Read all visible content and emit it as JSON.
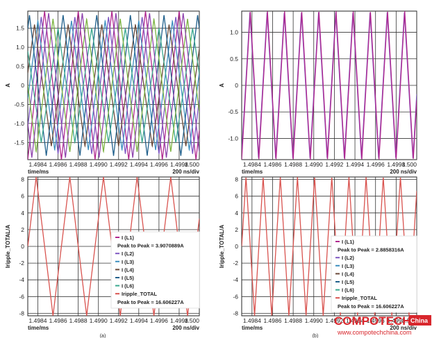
{
  "chart_data": [
    {
      "id": "a-top",
      "type": "line",
      "xlabel": "time/ms",
      "ylabel": "A",
      "scale_label": "200 ns/div",
      "xlim": [
        1.4983,
        1.5
      ],
      "ylim": [
        -1.95,
        1.95
      ],
      "x_ticks": [
        1.4984,
        1.4986,
        1.4988,
        1.499,
        1.4992,
        1.4994,
        1.4996,
        1.4998,
        1.5
      ],
      "x_tick_labels": [
        "1.4984",
        "1.4986",
        "1.4988",
        "1.4990",
        "1.4992",
        "1.4994",
        "1.4996",
        "1.4998",
        "1.500"
      ],
      "y_ticks": [
        -1.5,
        -1.0,
        -0.5,
        0,
        0.5,
        1.0,
        1.5
      ],
      "y_tick_labels": [
        "-1.5",
        "-1.0",
        "-0.5",
        "0",
        "0.5",
        "1.0",
        "1.5"
      ],
      "grid": true,
      "waveform": {
        "shape": "triangle",
        "period_ms": 0.00033333,
        "peak_to_peak": 3.9070889
      },
      "series": [
        {
          "color": "#b0278f",
          "amplitude": 1.95,
          "phase": 0.0
        },
        {
          "color": "#7e57c2",
          "amplitude": 1.8,
          "phase": 0.1
        },
        {
          "color": "#3d8fbf",
          "amplitude": 1.7,
          "phase": 0.2
        },
        {
          "color": "#6b4a3a",
          "amplitude": 1.6,
          "phase": 0.3
        },
        {
          "color": "#1f5f8b",
          "amplitude": 1.85,
          "phase": 0.45
        },
        {
          "color": "#3aa88f",
          "amplitude": 1.5,
          "phase": 0.6
        },
        {
          "color": "#7cb342",
          "amplitude": 1.75,
          "phase": 0.75
        },
        {
          "color": "#8e44ad",
          "amplitude": 1.9,
          "phase": 0.88
        }
      ]
    },
    {
      "id": "b-top",
      "type": "line",
      "xlabel": "time/ms",
      "ylabel": "A",
      "scale_label": "200 ns/div",
      "xlim": [
        1.4983,
        1.5
      ],
      "ylim": [
        -1.4,
        1.4
      ],
      "x_ticks": [
        1.4984,
        1.4986,
        1.4988,
        1.499,
        1.4992,
        1.4994,
        1.4996,
        1.4998,
        1.5
      ],
      "x_tick_labels": [
        "1.4984",
        "1.4986",
        "1.4988",
        "1.4990",
        "1.4992",
        "1.4994",
        "1.4996",
        "1.4998",
        "1.500"
      ],
      "y_ticks": [
        -1.0,
        -0.5,
        0,
        0.5,
        1.0
      ],
      "y_tick_labels": [
        "-1.0",
        "-0.5",
        "0",
        "0.5",
        "1.0"
      ],
      "grid": true,
      "waveform": {
        "shape": "triangle",
        "period_ms": 0.00016667,
        "peak_to_peak": 2.8858316
      },
      "series": [
        {
          "color": "#7e57c2",
          "amplitude": 1.38,
          "phase": 0.02
        },
        {
          "color": "#b0278f",
          "amplitude": 1.4,
          "phase": 0.0
        }
      ]
    },
    {
      "id": "a-bottom",
      "type": "line",
      "xlabel": "time/ms",
      "ylabel": "Iripple_TOTAL/A",
      "scale_label": "200 ns/div",
      "panel_label": "(a)",
      "xlim": [
        1.4983,
        1.5
      ],
      "ylim": [
        -8.3,
        8.3
      ],
      "x_ticks": [
        1.4984,
        1.4986,
        1.4988,
        1.499,
        1.4992,
        1.4994,
        1.4996,
        1.4998,
        1.5
      ],
      "x_tick_labels": [
        "1.4984",
        "1.4986",
        "1.4988",
        "1.4990",
        "1.4992",
        "1.4994",
        "1.4996",
        "1.4998",
        "1.500"
      ],
      "y_ticks": [
        -8,
        -6,
        -4,
        -2,
        0,
        2,
        4,
        6,
        8
      ],
      "y_tick_labels": [
        "-8",
        "-6",
        "-4",
        "-2",
        "0",
        "2",
        "4",
        "6",
        "8"
      ],
      "grid": true,
      "waveform": {
        "shape": "triangle",
        "period_ms": 0.00033333,
        "peak_to_peak": 16.606227
      },
      "series": [
        {
          "color": "#d9534f",
          "amplitude": 8.3,
          "phase": 0.25
        }
      ],
      "legend": {
        "position": "right",
        "entries": [
          {
            "label": "I (L1)",
            "color": "#b0278f"
          },
          {
            "label": "Peak to Peak = 3.9070889A",
            "color": ""
          },
          {
            "label": "I (L2)",
            "color": "#7e57c2"
          },
          {
            "label": "I (L3)",
            "color": "#3d8fbf"
          },
          {
            "label": "I (L4)",
            "color": "#6b4a3a"
          },
          {
            "label": "I (L5)",
            "color": "#1f5f8b"
          },
          {
            "label": "I (L6)",
            "color": "#3aa88f"
          },
          {
            "label": "Iripple_TOTAL",
            "color": "#d9534f"
          },
          {
            "label": "Peak to Peak = 16.606227A",
            "color": ""
          }
        ]
      }
    },
    {
      "id": "b-bottom",
      "type": "line",
      "xlabel": "time/ms",
      "ylabel": "Iripple_TOTAL/A",
      "scale_label": "200 ns/div",
      "panel_label": "(b)",
      "xlim": [
        1.4983,
        1.5
      ],
      "ylim": [
        -8.3,
        8.3
      ],
      "x_ticks": [
        1.4984,
        1.4986,
        1.4988,
        1.499,
        1.4992,
        1.4994,
        1.4996,
        1.4998,
        1.5
      ],
      "x_tick_labels": [
        "1.4984",
        "1.4986",
        "1.4988",
        "1.4990",
        "1.4992",
        "1.4994",
        "1.4996",
        "1.4998",
        "1.500"
      ],
      "y_ticks": [
        -8,
        -6,
        -4,
        -2,
        0,
        2,
        4,
        6,
        8
      ],
      "y_tick_labels": [
        "-8",
        "-6",
        "-4",
        "-2",
        "0",
        "2",
        "4",
        "6",
        "8"
      ],
      "grid": true,
      "waveform": {
        "shape": "triangle",
        "period_ms": 0.00016667,
        "peak_to_peak": 16.606227
      },
      "series": [
        {
          "color": "#d9534f",
          "amplitude": 8.3,
          "phase": 0.25
        }
      ],
      "legend": {
        "position": "right",
        "entries": [
          {
            "label": "I (L1)",
            "color": "#b0278f"
          },
          {
            "label": "Peak to Peak = 2.8858316A",
            "color": ""
          },
          {
            "label": "I (L2)",
            "color": "#7e57c2"
          },
          {
            "label": "I (L3)",
            "color": "#3d8fbf"
          },
          {
            "label": "I (L4)",
            "color": "#6b4a3a"
          },
          {
            "label": "I (L5)",
            "color": "#1f5f8b"
          },
          {
            "label": "I (L6)",
            "color": "#3aa88f"
          },
          {
            "label": "Iripple_TOTAL",
            "color": "#d9534f"
          },
          {
            "label": "Peak to Peak = 16.606227A",
            "color": ""
          }
        ]
      }
    }
  ],
  "watermark": {
    "brand": "COMPOTECH",
    "tag": "China",
    "url": "www.compotechchina.com"
  }
}
